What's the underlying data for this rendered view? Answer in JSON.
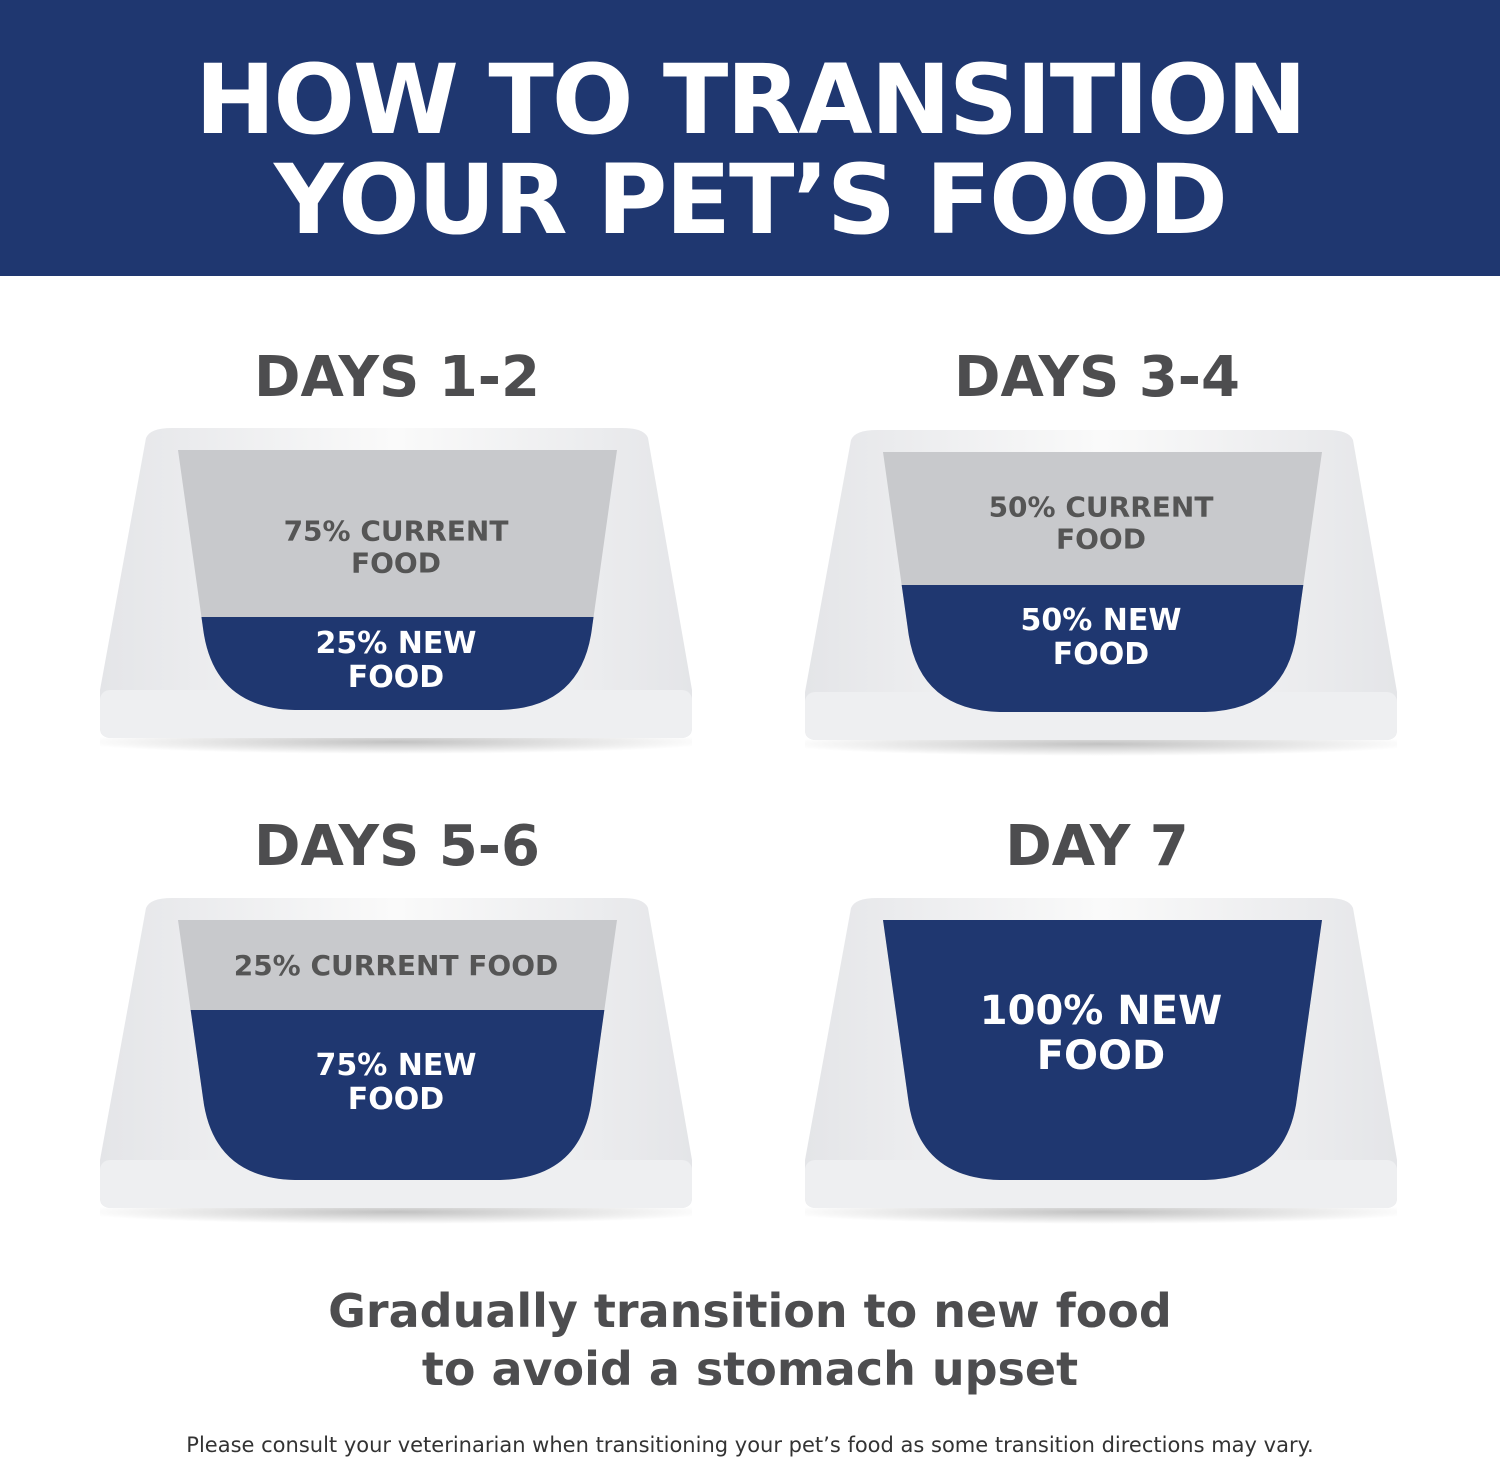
{
  "header": {
    "title_lines": [
      "HOW TO TRANSITION",
      "YOUR PET’S FOOD"
    ]
  },
  "steps": [
    {
      "day": "DAYS 1-2",
      "current": "75% CURRENT FOOD",
      "new": "25% NEW FOOD"
    },
    {
      "day": "DAYS 3-4",
      "current": "50% CURRENT FOOD",
      "new": "50% NEW FOOD"
    },
    {
      "day": "DAYS 5-6",
      "current": "25% CURRENT FOOD",
      "new": "75% NEW FOOD"
    },
    {
      "day": "DAY 7",
      "new": "100% NEW FOOD"
    }
  ],
  "tagline_lines": [
    "Gradually transition to new food",
    "to avoid a stomach upset"
  ],
  "disclaimer": "Please consult your veterinarian when transitioning your pet’s food as some transition directions may vary."
}
